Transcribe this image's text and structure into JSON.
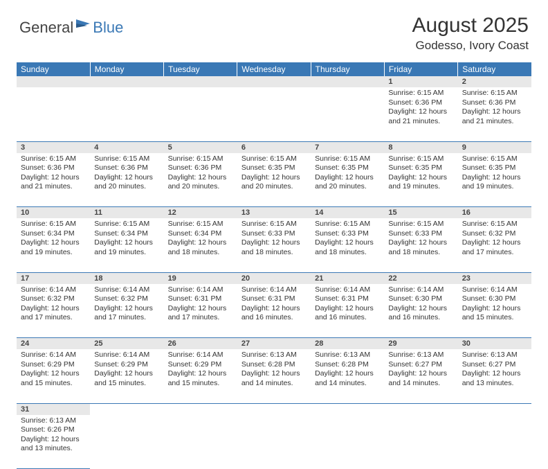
{
  "logo": {
    "part1": "General",
    "part2": "Blue"
  },
  "title": "August 2025",
  "location": "Godesso, Ivory Coast",
  "colors": {
    "header_bg": "#3a78b5",
    "header_text": "#ffffff",
    "daynum_bg": "#e8e8e8",
    "cell_border": "#3a78b5",
    "text": "#333333"
  },
  "weekdays": [
    "Sunday",
    "Monday",
    "Tuesday",
    "Wednesday",
    "Thursday",
    "Friday",
    "Saturday"
  ],
  "weeks": [
    [
      null,
      null,
      null,
      null,
      null,
      {
        "n": "1",
        "sr": "6:15 AM",
        "ss": "6:36 PM",
        "dl": "12 hours and 21 minutes."
      },
      {
        "n": "2",
        "sr": "6:15 AM",
        "ss": "6:36 PM",
        "dl": "12 hours and 21 minutes."
      }
    ],
    [
      {
        "n": "3",
        "sr": "6:15 AM",
        "ss": "6:36 PM",
        "dl": "12 hours and 21 minutes."
      },
      {
        "n": "4",
        "sr": "6:15 AM",
        "ss": "6:36 PM",
        "dl": "12 hours and 20 minutes."
      },
      {
        "n": "5",
        "sr": "6:15 AM",
        "ss": "6:36 PM",
        "dl": "12 hours and 20 minutes."
      },
      {
        "n": "6",
        "sr": "6:15 AM",
        "ss": "6:35 PM",
        "dl": "12 hours and 20 minutes."
      },
      {
        "n": "7",
        "sr": "6:15 AM",
        "ss": "6:35 PM",
        "dl": "12 hours and 20 minutes."
      },
      {
        "n": "8",
        "sr": "6:15 AM",
        "ss": "6:35 PM",
        "dl": "12 hours and 19 minutes."
      },
      {
        "n": "9",
        "sr": "6:15 AM",
        "ss": "6:35 PM",
        "dl": "12 hours and 19 minutes."
      }
    ],
    [
      {
        "n": "10",
        "sr": "6:15 AM",
        "ss": "6:34 PM",
        "dl": "12 hours and 19 minutes."
      },
      {
        "n": "11",
        "sr": "6:15 AM",
        "ss": "6:34 PM",
        "dl": "12 hours and 19 minutes."
      },
      {
        "n": "12",
        "sr": "6:15 AM",
        "ss": "6:34 PM",
        "dl": "12 hours and 18 minutes."
      },
      {
        "n": "13",
        "sr": "6:15 AM",
        "ss": "6:33 PM",
        "dl": "12 hours and 18 minutes."
      },
      {
        "n": "14",
        "sr": "6:15 AM",
        "ss": "6:33 PM",
        "dl": "12 hours and 18 minutes."
      },
      {
        "n": "15",
        "sr": "6:15 AM",
        "ss": "6:33 PM",
        "dl": "12 hours and 18 minutes."
      },
      {
        "n": "16",
        "sr": "6:15 AM",
        "ss": "6:32 PM",
        "dl": "12 hours and 17 minutes."
      }
    ],
    [
      {
        "n": "17",
        "sr": "6:14 AM",
        "ss": "6:32 PM",
        "dl": "12 hours and 17 minutes."
      },
      {
        "n": "18",
        "sr": "6:14 AM",
        "ss": "6:32 PM",
        "dl": "12 hours and 17 minutes."
      },
      {
        "n": "19",
        "sr": "6:14 AM",
        "ss": "6:31 PM",
        "dl": "12 hours and 17 minutes."
      },
      {
        "n": "20",
        "sr": "6:14 AM",
        "ss": "6:31 PM",
        "dl": "12 hours and 16 minutes."
      },
      {
        "n": "21",
        "sr": "6:14 AM",
        "ss": "6:31 PM",
        "dl": "12 hours and 16 minutes."
      },
      {
        "n": "22",
        "sr": "6:14 AM",
        "ss": "6:30 PM",
        "dl": "12 hours and 16 minutes."
      },
      {
        "n": "23",
        "sr": "6:14 AM",
        "ss": "6:30 PM",
        "dl": "12 hours and 15 minutes."
      }
    ],
    [
      {
        "n": "24",
        "sr": "6:14 AM",
        "ss": "6:29 PM",
        "dl": "12 hours and 15 minutes."
      },
      {
        "n": "25",
        "sr": "6:14 AM",
        "ss": "6:29 PM",
        "dl": "12 hours and 15 minutes."
      },
      {
        "n": "26",
        "sr": "6:14 AM",
        "ss": "6:29 PM",
        "dl": "12 hours and 15 minutes."
      },
      {
        "n": "27",
        "sr": "6:13 AM",
        "ss": "6:28 PM",
        "dl": "12 hours and 14 minutes."
      },
      {
        "n": "28",
        "sr": "6:13 AM",
        "ss": "6:28 PM",
        "dl": "12 hours and 14 minutes."
      },
      {
        "n": "29",
        "sr": "6:13 AM",
        "ss": "6:27 PM",
        "dl": "12 hours and 14 minutes."
      },
      {
        "n": "30",
        "sr": "6:13 AM",
        "ss": "6:27 PM",
        "dl": "12 hours and 13 minutes."
      }
    ],
    [
      {
        "n": "31",
        "sr": "6:13 AM",
        "ss": "6:26 PM",
        "dl": "12 hours and 13 minutes."
      },
      null,
      null,
      null,
      null,
      null,
      null
    ]
  ],
  "labels": {
    "sunrise": "Sunrise:",
    "sunset": "Sunset:",
    "daylight": "Daylight:"
  }
}
